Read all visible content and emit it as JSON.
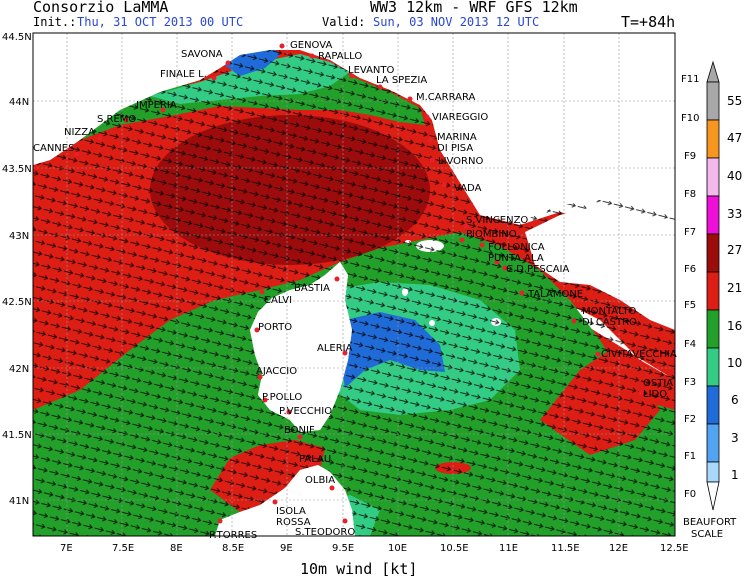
{
  "header": {
    "org": "Consorzio LaMMA",
    "model": "WW3 12km - WRF GFS 12km",
    "init_label": "Init.:",
    "init_value": "Thu, 31 OCT 2013  00 UTC",
    "valid_label": "Valid:",
    "valid_value": "Sun, 03 NOV 2013  12 UTC",
    "lead": "T=+84h"
  },
  "map": {
    "title": "10m wind [kt]",
    "lat_labels": [
      "44.5N",
      "44N",
      "43.5N",
      "43N",
      "42.5N",
      "42N",
      "41.5N",
      "41N"
    ],
    "lon_labels": [
      "7E",
      "7.5E",
      "8E",
      "8.5E",
      "9E",
      "9.5E",
      "10E",
      "10.5E",
      "11E",
      "11.5E",
      "12E",
      "12.5E"
    ],
    "places": [
      {
        "name": "GENOVA"
      },
      {
        "name": "SAVONA"
      },
      {
        "name": "RAPALLO"
      },
      {
        "name": "FINALE L."
      },
      {
        "name": "LEVANTO"
      },
      {
        "name": "LA SPEZIA"
      },
      {
        "name": "IMPERIA"
      },
      {
        "name": "M.CARRARA"
      },
      {
        "name": "S.REMO"
      },
      {
        "name": "VIAREGGIO"
      },
      {
        "name": "NIZZA"
      },
      {
        "name": "CANNES"
      },
      {
        "name": "MARINA"
      },
      {
        "name": "DI PISA"
      },
      {
        "name": "LIVORNO"
      },
      {
        "name": "VADA"
      },
      {
        "name": "S.VINCENZO"
      },
      {
        "name": "PIOMBINO"
      },
      {
        "name": "FOLLONICA"
      },
      {
        "name": "PUNTA ALA"
      },
      {
        "name": "C.D.PESCAIA"
      },
      {
        "name": "BASTIA"
      },
      {
        "name": "TALAMONE"
      },
      {
        "name": "CALVI"
      },
      {
        "name": "MONTALTO"
      },
      {
        "name": "DI CASTRO"
      },
      {
        "name": "PORTO"
      },
      {
        "name": "ALERIA"
      },
      {
        "name": "CIVITAVECCHIA"
      },
      {
        "name": "AJACCIO"
      },
      {
        "name": "OSTIA"
      },
      {
        "name": "LIDO"
      },
      {
        "name": "P.POLLO"
      },
      {
        "name": "P.VECCHIO"
      },
      {
        "name": "BONIF."
      },
      {
        "name": "PALAU"
      },
      {
        "name": "OLBIA"
      },
      {
        "name": "ISOLA"
      },
      {
        "name": "ROSSA"
      },
      {
        "name": "P.TORRES"
      },
      {
        "name": "S.TEODORO"
      }
    ]
  },
  "legend": {
    "beaufort": [
      "F11",
      "F10",
      "F9",
      "F8",
      "F7",
      "F6",
      "F5",
      "F4",
      "F3",
      "F2",
      "F1",
      "F0"
    ],
    "knots": [
      "55",
      "47",
      "40",
      "33",
      "27",
      "21",
      "16",
      "10",
      "6",
      "3",
      "1"
    ],
    "title_line1": "BEAUFORT",
    "title_line2": "SCALE",
    "colors": [
      "#a8a8a8",
      "#f7961e",
      "#f5b8ec",
      "#ee10d8",
      "#9c0c0c",
      "#dc1e14",
      "#22a02a",
      "#32cc84",
      "#1f6bd8",
      "#52a4f2",
      "#a8d8fa",
      "#ffffff"
    ]
  },
  "chart_data": {
    "type": "heatmap",
    "title": "10m wind [kt]",
    "x_range_deg_e": [
      6.7,
      12.5
    ],
    "y_range_deg_n": [
      40.65,
      44.5
    ],
    "prevailing_wind_direction": "west-south-west",
    "dominant_bands_kt": [
      "16-21",
      "21-27",
      "27-33"
    ]
  }
}
